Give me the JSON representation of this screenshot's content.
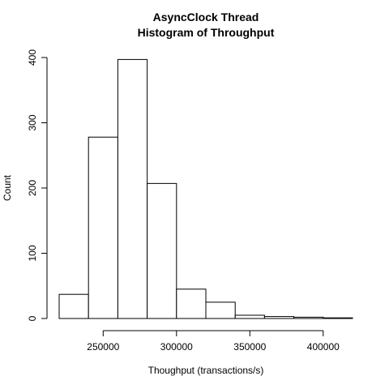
{
  "chart_data": {
    "type": "bar",
    "title": "AsyncClock Thread",
    "subtitle": "Histogram of Throughput",
    "xlabel": "Thoughput (transactions/s)",
    "ylabel": "Count",
    "bins": [
      {
        "from": 220000,
        "to": 240000,
        "count": 37
      },
      {
        "from": 240000,
        "to": 260000,
        "count": 278
      },
      {
        "from": 260000,
        "to": 280000,
        "count": 397
      },
      {
        "from": 280000,
        "to": 300000,
        "count": 207
      },
      {
        "from": 300000,
        "to": 320000,
        "count": 45
      },
      {
        "from": 320000,
        "to": 340000,
        "count": 25
      },
      {
        "from": 340000,
        "to": 360000,
        "count": 5
      },
      {
        "from": 360000,
        "to": 380000,
        "count": 3
      },
      {
        "from": 380000,
        "to": 400000,
        "count": 2
      },
      {
        "from": 400000,
        "to": 420000,
        "count": 1
      }
    ],
    "x_ticks": [
      250000,
      300000,
      350000,
      400000
    ],
    "x_tick_labels": [
      "250000",
      "300000",
      "350000",
      "400000"
    ],
    "y_ticks": [
      0,
      100,
      200,
      300,
      400
    ],
    "y_tick_labels": [
      "0",
      "100",
      "200",
      "300",
      "400"
    ],
    "xlim": [
      220000,
      420000
    ],
    "ylim": [
      0,
      400
    ],
    "grid": false,
    "bar_fill": "#ffffff",
    "bar_stroke": "#000000"
  }
}
